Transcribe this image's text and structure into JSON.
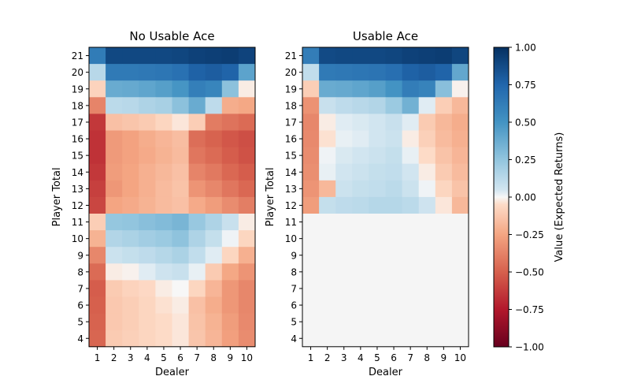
{
  "chart_data": {
    "type": "heatmap",
    "colormap": "RdBu",
    "colorbar": {
      "label": "Value (Expected Returns)",
      "range": [
        -1,
        1
      ],
      "ticks": [
        "−1.00",
        "−0.75",
        "−0.50",
        "−0.25",
        "0.00",
        "0.25",
        "0.50",
        "0.75",
        "1.00"
      ],
      "tick_values": [
        -1,
        -0.75,
        -0.5,
        -0.25,
        0,
        0.25,
        0.5,
        0.75,
        1
      ]
    },
    "dealer": [
      1,
      2,
      3,
      4,
      5,
      6,
      7,
      8,
      9,
      10
    ],
    "player_totals": [
      21,
      20,
      19,
      18,
      17,
      16,
      15,
      14,
      13,
      12,
      11,
      10,
      9,
      8,
      7,
      6,
      5,
      4
    ],
    "panels": [
      {
        "title": "No Usable Ace",
        "xlabel": "Dealer",
        "ylabel": "Player Total",
        "values": [
          [
            0.63,
            0.89,
            0.89,
            0.89,
            0.89,
            0.9,
            0.92,
            0.93,
            0.94,
            0.91
          ],
          [
            0.13,
            0.64,
            0.64,
            0.65,
            0.66,
            0.69,
            0.77,
            0.79,
            0.76,
            0.42
          ],
          [
            -0.08,
            0.38,
            0.39,
            0.41,
            0.44,
            0.49,
            0.61,
            0.58,
            0.27,
            -0.02
          ],
          [
            -0.37,
            0.12,
            0.13,
            0.16,
            0.18,
            0.27,
            0.38,
            0.11,
            -0.22,
            -0.24
          ],
          [
            -0.64,
            -0.15,
            -0.13,
            -0.11,
            -0.07,
            -0.03,
            -0.1,
            -0.4,
            -0.43,
            -0.46
          ],
          [
            -0.66,
            -0.29,
            -0.26,
            -0.22,
            -0.19,
            -0.16,
            -0.45,
            -0.49,
            -0.53,
            -0.56
          ],
          [
            -0.66,
            -0.29,
            -0.26,
            -0.23,
            -0.2,
            -0.17,
            -0.42,
            -0.46,
            -0.51,
            -0.55
          ],
          [
            -0.64,
            -0.28,
            -0.25,
            -0.21,
            -0.18,
            -0.15,
            -0.37,
            -0.41,
            -0.47,
            -0.51
          ],
          [
            -0.61,
            -0.3,
            -0.25,
            -0.21,
            -0.17,
            -0.14,
            -0.31,
            -0.36,
            -0.42,
            -0.47
          ],
          [
            -0.59,
            -0.25,
            -0.23,
            -0.2,
            -0.17,
            -0.15,
            -0.23,
            -0.28,
            -0.34,
            -0.39
          ],
          [
            -0.1,
            0.24,
            0.25,
            0.28,
            0.3,
            0.33,
            0.23,
            0.16,
            0.08,
            -0.02
          ],
          [
            -0.2,
            0.15,
            0.17,
            0.2,
            0.22,
            0.26,
            0.16,
            0.09,
            0.01,
            -0.07
          ],
          [
            -0.36,
            0.07,
            0.09,
            0.11,
            0.14,
            0.17,
            0.1,
            0.03,
            -0.07,
            -0.21
          ],
          [
            -0.46,
            -0.02,
            -0.01,
            0.03,
            0.06,
            0.08,
            0.02,
            -0.11,
            -0.24,
            -0.31
          ],
          [
            -0.51,
            -0.11,
            -0.08,
            -0.06,
            -0.02,
            0.0,
            -0.07,
            -0.19,
            -0.3,
            -0.36
          ],
          [
            -0.5,
            -0.12,
            -0.1,
            -0.07,
            -0.04,
            -0.02,
            -0.15,
            -0.22,
            -0.3,
            -0.36
          ],
          [
            -0.49,
            -0.12,
            -0.1,
            -0.07,
            -0.05,
            -0.03,
            -0.14,
            -0.2,
            -0.28,
            -0.35
          ],
          [
            -0.48,
            -0.11,
            -0.09,
            -0.07,
            -0.05,
            -0.03,
            -0.13,
            -0.19,
            -0.27,
            -0.34
          ]
        ]
      },
      {
        "title": "Usable Ace",
        "xlabel": "Dealer",
        "ylabel": "Player Total",
        "values": [
          [
            0.62,
            0.88,
            0.89,
            0.89,
            0.89,
            0.9,
            0.92,
            0.93,
            0.94,
            0.9
          ],
          [
            0.1,
            0.64,
            0.65,
            0.66,
            0.67,
            0.7,
            0.77,
            0.79,
            0.76,
            0.4
          ],
          [
            -0.1,
            0.38,
            0.39,
            0.41,
            0.44,
            0.5,
            0.62,
            0.59,
            0.28,
            -0.01
          ],
          [
            -0.32,
            0.08,
            0.11,
            0.13,
            0.15,
            0.22,
            0.35,
            0.03,
            -0.1,
            -0.18
          ],
          [
            -0.36,
            -0.02,
            0.03,
            0.04,
            0.05,
            0.08,
            0.03,
            -0.11,
            -0.18,
            -0.22
          ],
          [
            -0.35,
            -0.04,
            0.02,
            0.03,
            0.05,
            0.07,
            -0.02,
            -0.09,
            -0.17,
            -0.21
          ],
          [
            -0.34,
            0.01,
            0.04,
            0.05,
            0.07,
            0.09,
            0.02,
            -0.05,
            -0.14,
            -0.19
          ],
          [
            -0.33,
            0.02,
            0.05,
            0.07,
            0.09,
            0.1,
            0.05,
            -0.02,
            -0.11,
            -0.17
          ],
          [
            -0.31,
            -0.18,
            0.07,
            0.09,
            0.1,
            0.12,
            0.07,
            0.01,
            -0.07,
            -0.14
          ],
          [
            -0.28,
            0.09,
            0.11,
            0.12,
            0.14,
            0.14,
            0.12,
            0.06,
            -0.03,
            -0.18
          ],
          [
            null,
            null,
            null,
            null,
            null,
            null,
            null,
            null,
            null,
            null
          ],
          [
            null,
            null,
            null,
            null,
            null,
            null,
            null,
            null,
            null,
            null
          ],
          [
            null,
            null,
            null,
            null,
            null,
            null,
            null,
            null,
            null,
            null
          ],
          [
            null,
            null,
            null,
            null,
            null,
            null,
            null,
            null,
            null,
            null
          ],
          [
            null,
            null,
            null,
            null,
            null,
            null,
            null,
            null,
            null,
            null
          ],
          [
            null,
            null,
            null,
            null,
            null,
            null,
            null,
            null,
            null,
            null
          ],
          [
            null,
            null,
            null,
            null,
            null,
            null,
            null,
            null,
            null,
            null
          ],
          [
            null,
            null,
            null,
            null,
            null,
            null,
            null,
            null,
            null,
            null
          ]
        ]
      }
    ]
  }
}
